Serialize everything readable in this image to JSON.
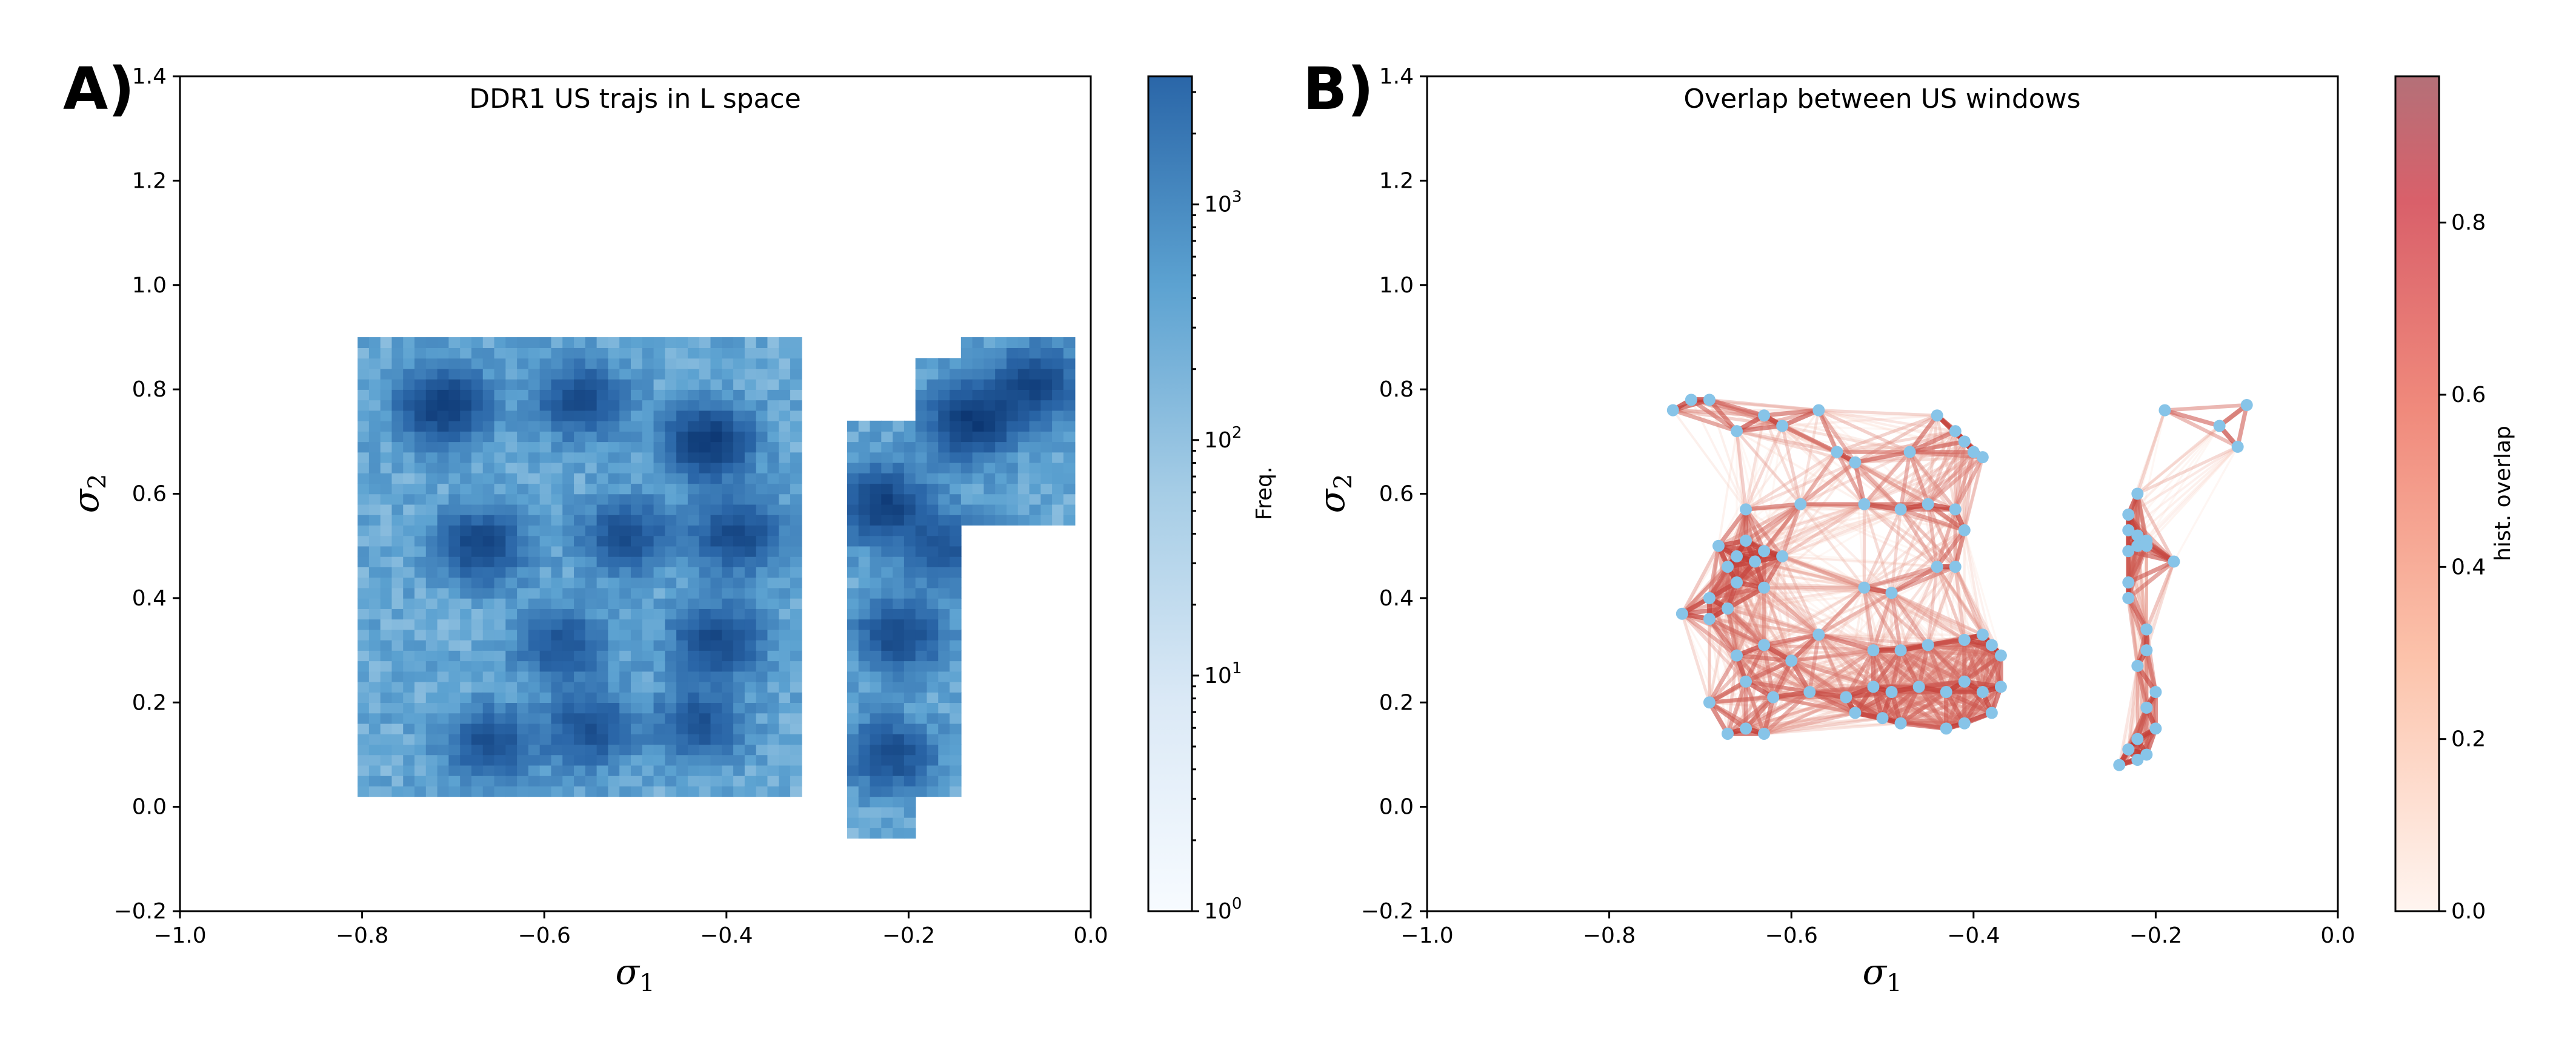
{
  "chart_data": [
    {
      "type": "heatmap",
      "panel_label": "A)",
      "title": "DDR1 US trajs in L space",
      "xlabel": "σ",
      "xlabel_sub": "1",
      "ylabel": "σ",
      "ylabel_sub": "2",
      "xlim": [
        -1.0,
        0.0
      ],
      "ylim": [
        -0.2,
        1.4
      ],
      "xticks": [
        -1.0,
        -0.8,
        -0.6,
        -0.4,
        -0.2,
        0.0
      ],
      "xtick_labels": [
        "−1.0",
        "−0.8",
        "−0.6",
        "−0.4",
        "−0.2",
        "0.0"
      ],
      "yticks": [
        -0.2,
        0.0,
        0.2,
        0.4,
        0.6,
        0.8,
        1.0,
        1.2,
        1.4
      ],
      "ytick_labels": [
        "−0.2",
        "0.0",
        "0.2",
        "0.4",
        "0.6",
        "0.8",
        "1.0",
        "1.2",
        "1.4"
      ],
      "colorbar": {
        "label": "Freq.",
        "scale": "log",
        "range": [
          1,
          3500
        ],
        "ticks": [
          1,
          10,
          100,
          1000
        ],
        "tick_base": [
          "10",
          "10",
          "10",
          "10"
        ],
        "tick_exp": [
          "0",
          "1",
          "2",
          "3"
        ],
        "cmap_low": "#f7fbff",
        "cmap_high": "#08306b"
      },
      "hotspots": [
        {
          "x": -0.71,
          "y": 0.77,
          "weight": 3.2
        },
        {
          "x": -0.56,
          "y": 0.78,
          "weight": 2.4
        },
        {
          "x": -0.42,
          "y": 0.7,
          "weight": 3.3
        },
        {
          "x": -0.67,
          "y": 0.5,
          "weight": 2.7
        },
        {
          "x": -0.51,
          "y": 0.52,
          "weight": 2.2
        },
        {
          "x": -0.39,
          "y": 0.52,
          "weight": 2.5
        },
        {
          "x": -0.41,
          "y": 0.32,
          "weight": 2.6
        },
        {
          "x": -0.58,
          "y": 0.31,
          "weight": 2.0
        },
        {
          "x": -0.66,
          "y": 0.12,
          "weight": 2.2
        },
        {
          "x": -0.55,
          "y": 0.15,
          "weight": 2.2
        },
        {
          "x": -0.43,
          "y": 0.16,
          "weight": 2.0
        },
        {
          "x": -0.23,
          "y": 0.58,
          "weight": 3.0
        },
        {
          "x": -0.21,
          "y": 0.33,
          "weight": 2.5
        },
        {
          "x": -0.22,
          "y": 0.1,
          "weight": 2.3
        },
        {
          "x": -0.13,
          "y": 0.74,
          "weight": 3.3
        },
        {
          "x": -0.16,
          "y": 0.5,
          "weight": 1.8
        },
        {
          "x": -0.06,
          "y": 0.81,
          "weight": 2.6
        }
      ]
    },
    {
      "type": "scatter",
      "panel_label": "B)",
      "title": "Overlap between US windows",
      "xlabel": "σ",
      "xlabel_sub": "1",
      "ylabel": "σ",
      "ylabel_sub": "2",
      "xlim": [
        -1.0,
        0.0
      ],
      "ylim": [
        -0.2,
        1.4
      ],
      "xticks": [
        -1.0,
        -0.8,
        -0.6,
        -0.4,
        -0.2,
        0.0
      ],
      "xtick_labels": [
        "−1.0",
        "−0.8",
        "−0.6",
        "−0.4",
        "−0.2",
        "0.0"
      ],
      "yticks": [
        -0.2,
        0.0,
        0.2,
        0.4,
        0.6,
        0.8,
        1.0,
        1.2,
        1.4
      ],
      "ytick_labels": [
        "−0.2",
        "0.0",
        "0.2",
        "0.4",
        "0.6",
        "0.8",
        "1.0",
        "1.2",
        "1.4"
      ],
      "colorbar": {
        "label": "hist. overlap",
        "scale": "linear",
        "range": [
          0.0,
          0.97
        ],
        "ticks": [
          0.0,
          0.2,
          0.4,
          0.6,
          0.8
        ],
        "tick_labels": [
          "0.0",
          "0.2",
          "0.4",
          "0.6",
          "0.8"
        ],
        "cmap_low": "#fff5f0",
        "cmap_high": "#9b3a46"
      },
      "point_color": "#87c4e8",
      "points": [
        {
          "x": -0.73,
          "y": 0.76
        },
        {
          "x": -0.71,
          "y": 0.78
        },
        {
          "x": -0.69,
          "y": 0.78
        },
        {
          "x": -0.66,
          "y": 0.72
        },
        {
          "x": -0.63,
          "y": 0.75
        },
        {
          "x": -0.61,
          "y": 0.73
        },
        {
          "x": -0.57,
          "y": 0.76
        },
        {
          "x": -0.55,
          "y": 0.68
        },
        {
          "x": -0.53,
          "y": 0.66
        },
        {
          "x": -0.47,
          "y": 0.68
        },
        {
          "x": -0.44,
          "y": 0.75
        },
        {
          "x": -0.42,
          "y": 0.72
        },
        {
          "x": -0.41,
          "y": 0.7
        },
        {
          "x": -0.4,
          "y": 0.68
        },
        {
          "x": -0.39,
          "y": 0.67
        },
        {
          "x": -0.65,
          "y": 0.57
        },
        {
          "x": -0.59,
          "y": 0.58
        },
        {
          "x": -0.52,
          "y": 0.58
        },
        {
          "x": -0.48,
          "y": 0.57
        },
        {
          "x": -0.45,
          "y": 0.58
        },
        {
          "x": -0.42,
          "y": 0.57
        },
        {
          "x": -0.41,
          "y": 0.53
        },
        {
          "x": -0.44,
          "y": 0.46
        },
        {
          "x": -0.42,
          "y": 0.46
        },
        {
          "x": -0.68,
          "y": 0.5
        },
        {
          "x": -0.67,
          "y": 0.46
        },
        {
          "x": -0.66,
          "y": 0.48
        },
        {
          "x": -0.65,
          "y": 0.51
        },
        {
          "x": -0.64,
          "y": 0.47
        },
        {
          "x": -0.63,
          "y": 0.49
        },
        {
          "x": -0.61,
          "y": 0.48
        },
        {
          "x": -0.66,
          "y": 0.43
        },
        {
          "x": -0.63,
          "y": 0.42
        },
        {
          "x": -0.69,
          "y": 0.4
        },
        {
          "x": -0.72,
          "y": 0.37
        },
        {
          "x": -0.69,
          "y": 0.36
        },
        {
          "x": -0.67,
          "y": 0.38
        },
        {
          "x": -0.52,
          "y": 0.42
        },
        {
          "x": -0.49,
          "y": 0.41
        },
        {
          "x": -0.57,
          "y": 0.33
        },
        {
          "x": -0.51,
          "y": 0.3
        },
        {
          "x": -0.48,
          "y": 0.3
        },
        {
          "x": -0.45,
          "y": 0.31
        },
        {
          "x": -0.41,
          "y": 0.32
        },
        {
          "x": -0.39,
          "y": 0.33
        },
        {
          "x": -0.38,
          "y": 0.31
        },
        {
          "x": -0.37,
          "y": 0.29
        },
        {
          "x": -0.66,
          "y": 0.29
        },
        {
          "x": -0.63,
          "y": 0.31
        },
        {
          "x": -0.6,
          "y": 0.28
        },
        {
          "x": -0.65,
          "y": 0.24
        },
        {
          "x": -0.62,
          "y": 0.21
        },
        {
          "x": -0.58,
          "y": 0.22
        },
        {
          "x": -0.54,
          "y": 0.21
        },
        {
          "x": -0.51,
          "y": 0.23
        },
        {
          "x": -0.49,
          "y": 0.22
        },
        {
          "x": -0.46,
          "y": 0.23
        },
        {
          "x": -0.43,
          "y": 0.22
        },
        {
          "x": -0.41,
          "y": 0.24
        },
        {
          "x": -0.39,
          "y": 0.22
        },
        {
          "x": -0.37,
          "y": 0.23
        },
        {
          "x": -0.69,
          "y": 0.2
        },
        {
          "x": -0.67,
          "y": 0.14
        },
        {
          "x": -0.65,
          "y": 0.15
        },
        {
          "x": -0.63,
          "y": 0.14
        },
        {
          "x": -0.53,
          "y": 0.18
        },
        {
          "x": -0.5,
          "y": 0.17
        },
        {
          "x": -0.48,
          "y": 0.16
        },
        {
          "x": -0.43,
          "y": 0.15
        },
        {
          "x": -0.41,
          "y": 0.16
        },
        {
          "x": -0.38,
          "y": 0.18
        },
        {
          "x": -0.19,
          "y": 0.76
        },
        {
          "x": -0.13,
          "y": 0.73
        },
        {
          "x": -0.11,
          "y": 0.69
        },
        {
          "x": -0.1,
          "y": 0.77
        },
        {
          "x": -0.22,
          "y": 0.6
        },
        {
          "x": -0.23,
          "y": 0.56
        },
        {
          "x": -0.23,
          "y": 0.53
        },
        {
          "x": -0.22,
          "y": 0.52
        },
        {
          "x": -0.21,
          "y": 0.51
        },
        {
          "x": -0.22,
          "y": 0.5
        },
        {
          "x": -0.23,
          "y": 0.49
        },
        {
          "x": -0.21,
          "y": 0.5
        },
        {
          "x": -0.18,
          "y": 0.47
        },
        {
          "x": -0.23,
          "y": 0.43
        },
        {
          "x": -0.23,
          "y": 0.4
        },
        {
          "x": -0.21,
          "y": 0.34
        },
        {
          "x": -0.21,
          "y": 0.3
        },
        {
          "x": -0.22,
          "y": 0.27
        },
        {
          "x": -0.2,
          "y": 0.22
        },
        {
          "x": -0.21,
          "y": 0.19
        },
        {
          "x": -0.2,
          "y": 0.15
        },
        {
          "x": -0.22,
          "y": 0.13
        },
        {
          "x": -0.23,
          "y": 0.11
        },
        {
          "x": -0.22,
          "y": 0.09
        },
        {
          "x": -0.24,
          "y": 0.08
        },
        {
          "x": -0.21,
          "y": 0.1
        }
      ]
    }
  ]
}
